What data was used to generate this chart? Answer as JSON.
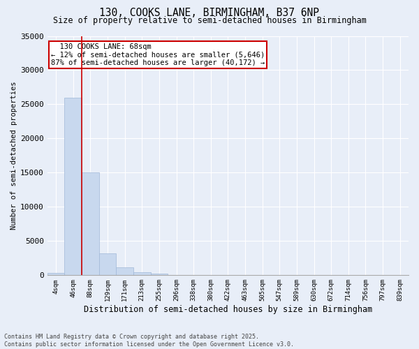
{
  "title_line1": "130, COOKS LANE, BIRMINGHAM, B37 6NP",
  "title_line2": "Size of property relative to semi-detached houses in Birmingham",
  "xlabel": "Distribution of semi-detached houses by size in Birmingham",
  "ylabel": "Number of semi-detached properties",
  "annotation_title": "130 COOKS LANE: 68sqm",
  "annotation_line2": "← 12% of semi-detached houses are smaller (5,646)",
  "annotation_line3": "87% of semi-detached houses are larger (40,172) →",
  "footer_line1": "Contains HM Land Registry data © Crown copyright and database right 2025.",
  "footer_line2": "Contains public sector information licensed under the Open Government Licence v3.0.",
  "bin_labels": [
    "4sqm",
    "46sqm",
    "88sqm",
    "129sqm",
    "171sqm",
    "213sqm",
    "255sqm",
    "296sqm",
    "338sqm",
    "380sqm",
    "422sqm",
    "463sqm",
    "505sqm",
    "547sqm",
    "589sqm",
    "630sqm",
    "672sqm",
    "714sqm",
    "756sqm",
    "797sqm",
    "839sqm"
  ],
  "bar_values": [
    300,
    26000,
    15000,
    3200,
    1200,
    400,
    200,
    50,
    0,
    0,
    0,
    0,
    0,
    0,
    0,
    0,
    0,
    0,
    0,
    0,
    0
  ],
  "bar_color": "#c8d8ee",
  "bar_edgecolor": "#a0b8d8",
  "vline_x": 1.5,
  "vline_color": "#cc0000",
  "ylim": [
    0,
    35000
  ],
  "yticks": [
    0,
    5000,
    10000,
    15000,
    20000,
    25000,
    30000,
    35000
  ],
  "bg_color": "#e8eef8",
  "grid_color": "#ffffff"
}
